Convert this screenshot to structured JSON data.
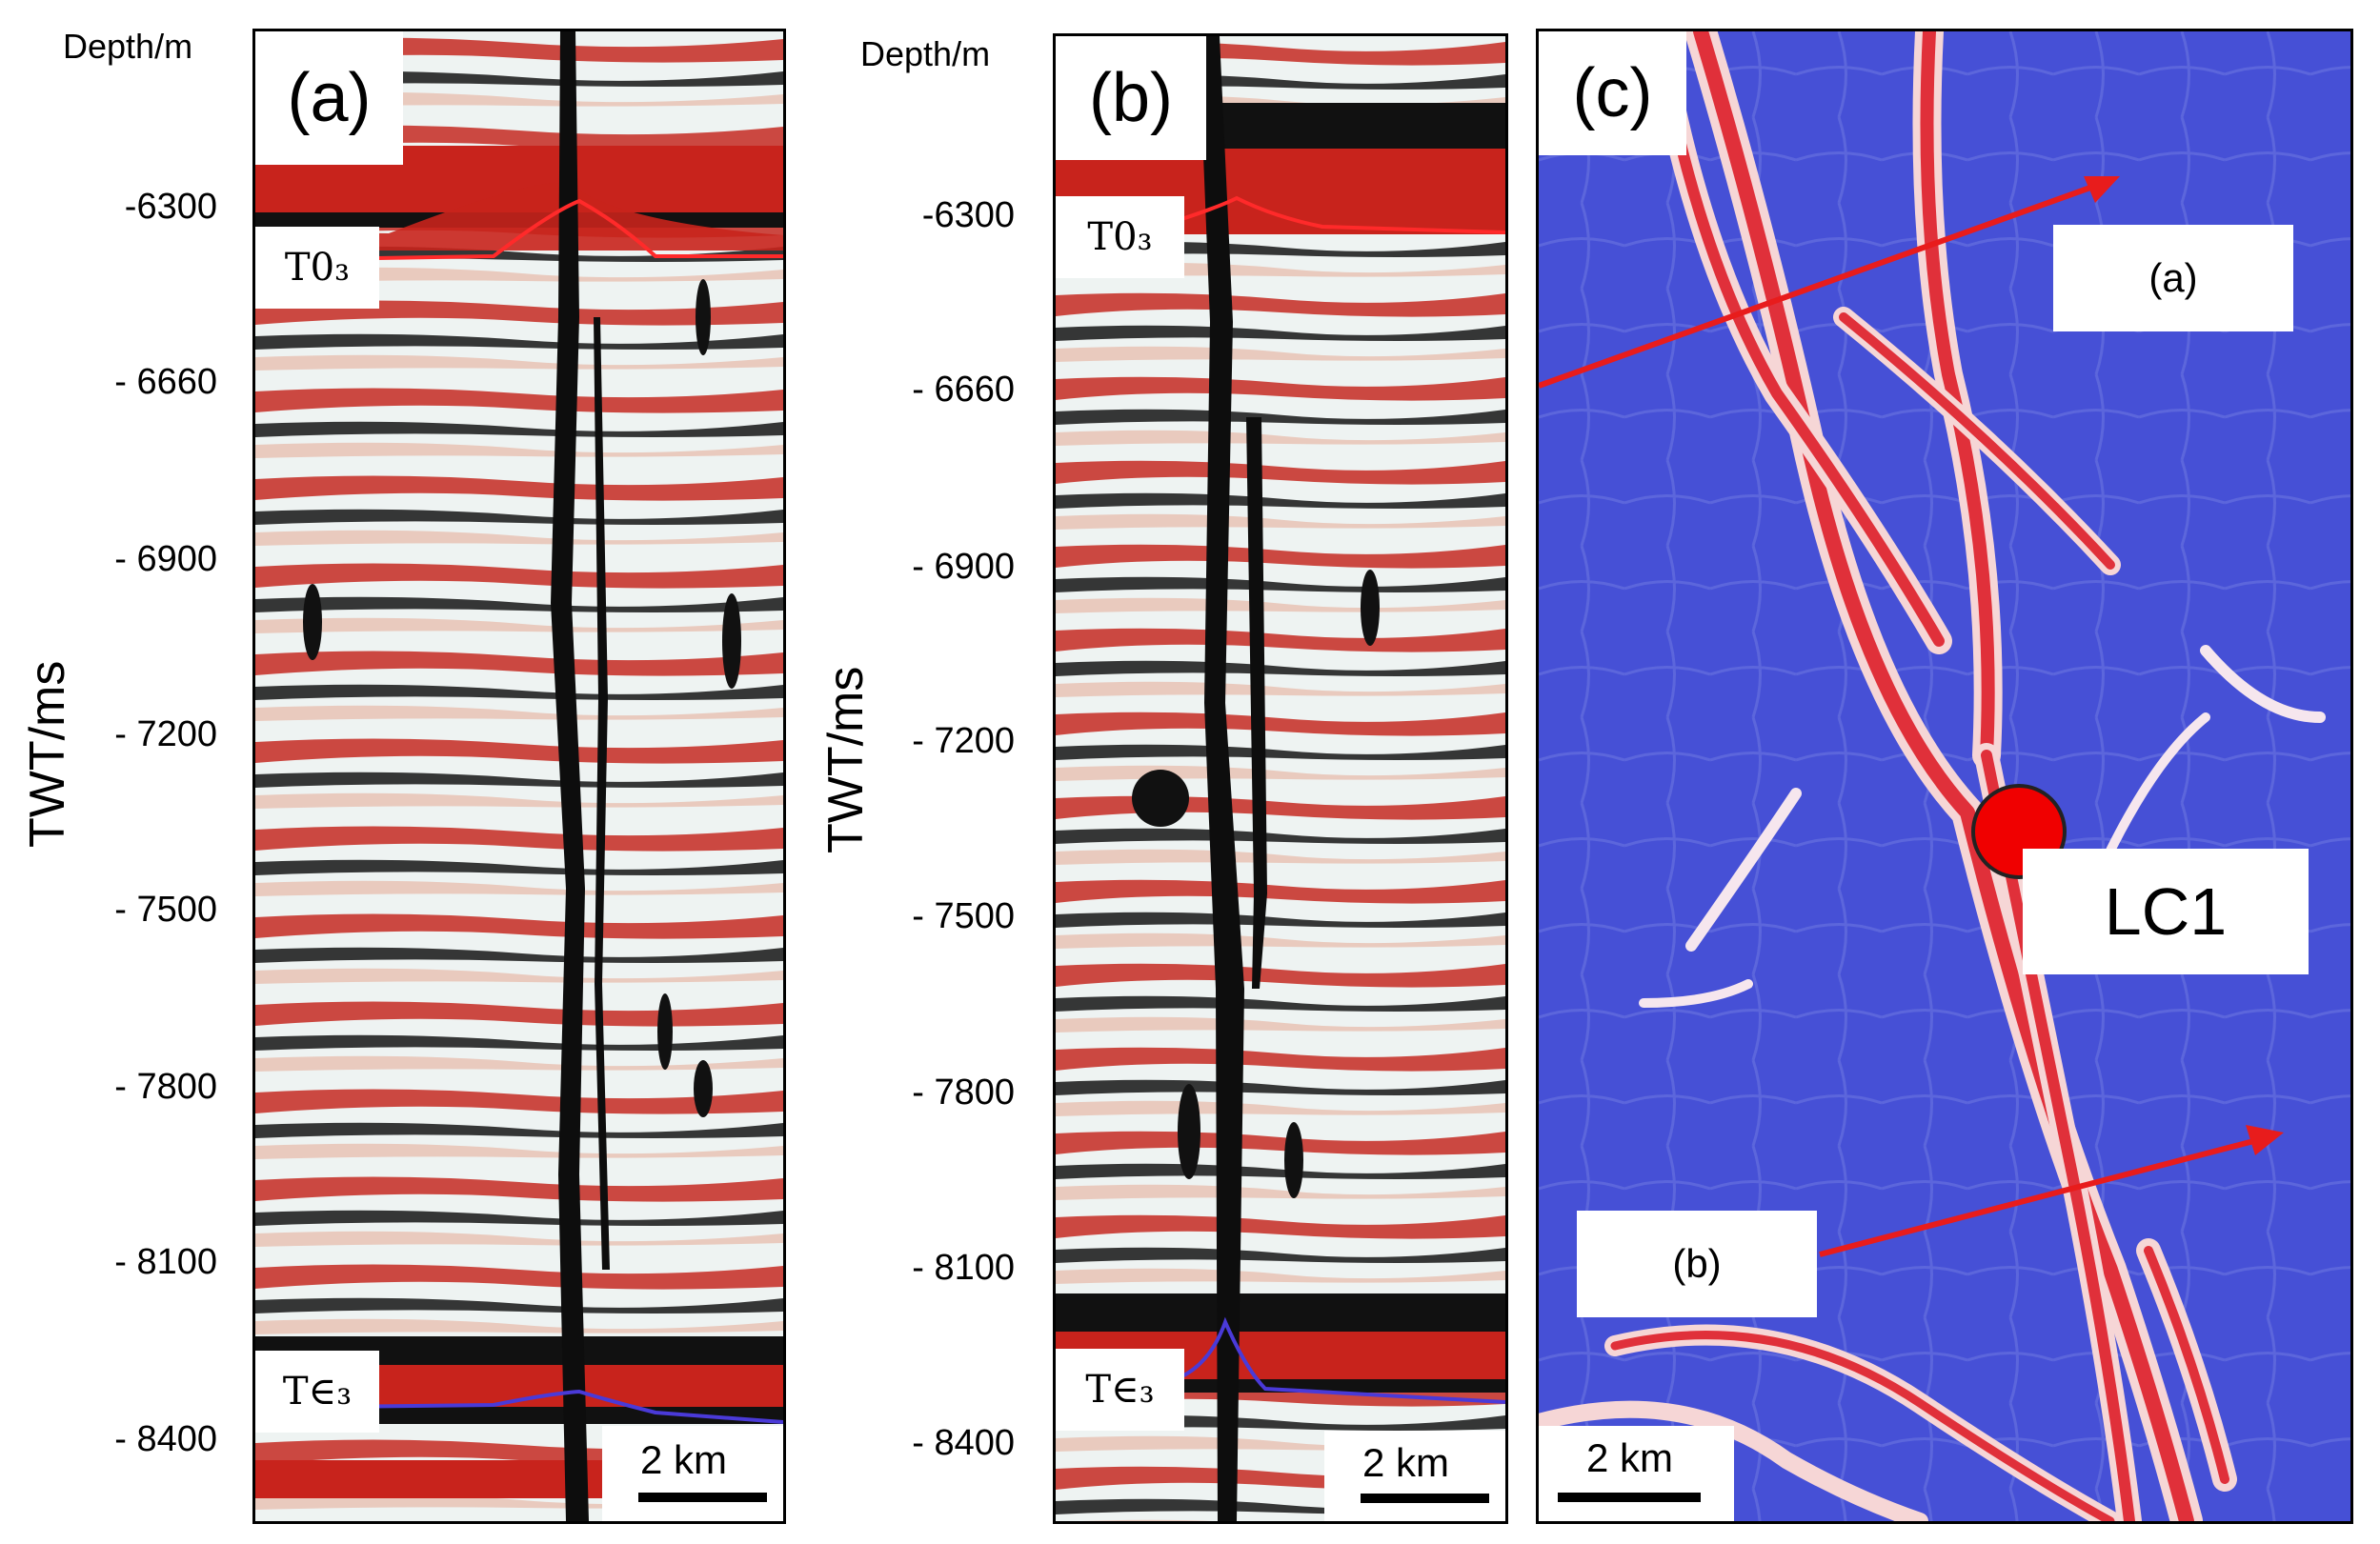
{
  "depth_label": "Depth/m",
  "axis_title": "TWT/ms",
  "tick_labels": [
    "-6300",
    "- 6660",
    "- 6900",
    "- 7200",
    "- 7500",
    "- 7800",
    "- 8100",
    "- 8400"
  ],
  "panel_a": {
    "letter": "(a)",
    "horizon_top": "T0₃",
    "horizon_bottom": "T∈₃",
    "scale": "2  km"
  },
  "panel_b": {
    "letter": "(b)",
    "horizon_top": "T0₃",
    "horizon_bottom": "T∈₃",
    "scale": "2  km"
  },
  "panel_c": {
    "letter": "(c)",
    "arrow_a_label": "(a)",
    "arrow_b_label": "(b)",
    "well_label": "LC1",
    "scale": "2  km"
  },
  "colors": {
    "seismic_red": "#c8231c",
    "seismic_black": "#111111",
    "seismic_white": "#eef4f4",
    "horizon_top_line": "#ff2a2a",
    "horizon_bottom_line": "#4a3ad8",
    "map_blue": "#4650d6",
    "fault_red": "#e0303a",
    "arrow_red": "#e81c1c",
    "well_dot": "#f00000"
  }
}
